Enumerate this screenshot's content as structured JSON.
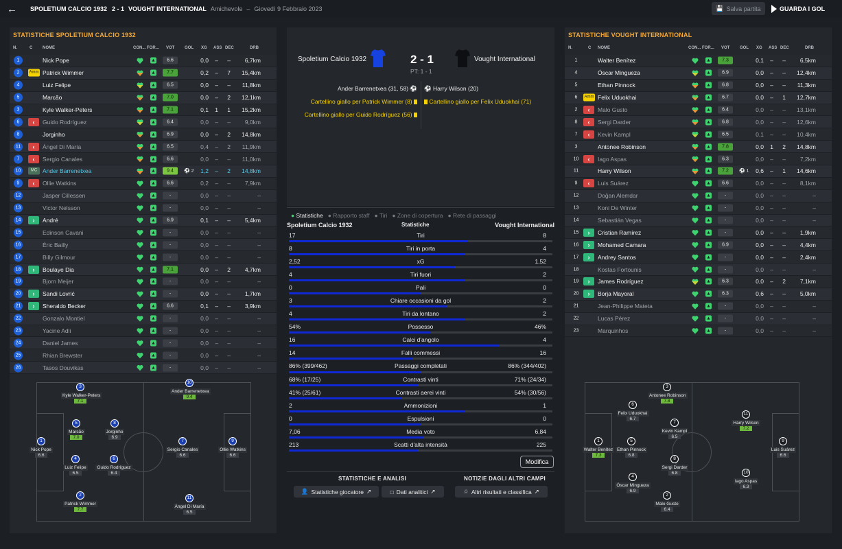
{
  "header": {
    "home": "SPOLETIUM CALCIO 1932",
    "score": "2 - 1",
    "away": "VOUGHT INTERNATIONAL",
    "type": "Amichevole",
    "sep": "–",
    "date": "Giovedì 9 Febbraio 2023",
    "save": "Salva partita",
    "goals": "GUARDA I GOL"
  },
  "cols": {
    "n": "N.",
    "c": "C",
    "name": "NOME",
    "con": "CON...",
    "form": "FOR...",
    "vot": "VOT",
    "gol": "GOL",
    "xg": "XG",
    "ass": "ASS",
    "dec": "DEC",
    "drb": "DRB"
  },
  "home": {
    "title": "STATISTICHE SPOLETIUM CALCIO 1932",
    "players": [
      {
        "n": "1",
        "name": "Nick Pope",
        "cond": "g",
        "vot": "6.6",
        "vs": "",
        "gol": "",
        "xg": "0,0",
        "ass": "–",
        "dec": "–",
        "drb": "6,7km",
        "st": "p"
      },
      {
        "n": "2",
        "pos": "Amm",
        "name": "Patrick Wimmer",
        "cond": "o",
        "vot": "7.7",
        "vs": "g",
        "gol": "",
        "xg": "0,2",
        "ass": "–",
        "dec": "7",
        "drb": "15,4km",
        "st": "p"
      },
      {
        "n": "4",
        "name": "Luiz Felipe",
        "cond": "y",
        "vot": "6.5",
        "vs": "",
        "gol": "",
        "xg": "0,0",
        "ass": "–",
        "dec": "–",
        "drb": "11,8km",
        "st": "p"
      },
      {
        "n": "5",
        "name": "Marcão",
        "cond": "o",
        "vot": "7.0",
        "vs": "g",
        "gol": "",
        "xg": "0,0",
        "ass": "–",
        "dec": "2",
        "drb": "12,1km",
        "st": "p"
      },
      {
        "n": "3",
        "name": "Kyle Walker-Peters",
        "cond": "o",
        "vot": "7.1",
        "vs": "g",
        "gol": "",
        "xg": "0,1",
        "ass": "1",
        "dec": "1",
        "drb": "15,2km",
        "st": "p"
      },
      {
        "n": "6",
        "sub": "out",
        "name": "Guido Rodríguez",
        "cond": "y",
        "vot": "6.4",
        "vs": "",
        "gol": "",
        "xg": "0,0",
        "ass": "–",
        "dec": "–",
        "drb": "9,0km",
        "st": "d"
      },
      {
        "n": "8",
        "name": "Jorginho",
        "cond": "o",
        "vot": "6.9",
        "vs": "",
        "gol": "",
        "xg": "0,0",
        "ass": "–",
        "dec": "2",
        "drb": "14,8km",
        "st": "p"
      },
      {
        "n": "11",
        "sub": "out",
        "name": "Ángel Di María",
        "cond": "o",
        "vot": "6.5",
        "vs": "",
        "gol": "",
        "xg": "0,4",
        "ass": "–",
        "dec": "2",
        "drb": "11,9km",
        "st": "d"
      },
      {
        "n": "7",
        "sub": "out",
        "name": "Sergio Canales",
        "cond": "o",
        "vot": "6.6",
        "vs": "",
        "gol": "",
        "xg": "0,0",
        "ass": "–",
        "dec": "–",
        "drb": "11,0km",
        "st": "d"
      },
      {
        "n": "10",
        "pos": "MC",
        "name": "Ander Barrenetxea",
        "cond": "o",
        "vot": "9.4",
        "vs": "gg",
        "gol": "2",
        "xg": "1,2",
        "ass": "–",
        "dec": "2",
        "drb": "14,8km",
        "st": "h"
      },
      {
        "n": "9",
        "sub": "out",
        "name": "Ollie Watkins",
        "cond": "g",
        "vot": "6.6",
        "vs": "",
        "gol": "",
        "xg": "0,2",
        "ass": "–",
        "dec": "–",
        "drb": "7,9km",
        "st": "d"
      },
      {
        "n": "12",
        "name": "Jasper Cillessen",
        "cond": "g",
        "vot": "-",
        "vs": "",
        "gol": "",
        "xg": "0,0",
        "ass": "–",
        "dec": "–",
        "drb": "–",
        "st": "d"
      },
      {
        "n": "13",
        "name": "Victor Nelsson",
        "cond": "g",
        "vot": "-",
        "vs": "",
        "gol": "",
        "xg": "0,0",
        "ass": "–",
        "dec": "–",
        "drb": "–",
        "st": "d"
      },
      {
        "n": "14",
        "sub": "in",
        "name": "André",
        "cond": "g",
        "vot": "6.9",
        "vs": "",
        "gol": "",
        "xg": "0,1",
        "ass": "–",
        "dec": "–",
        "drb": "5,4km",
        "st": "p"
      },
      {
        "n": "15",
        "name": "Edinson Cavani",
        "cond": "g",
        "vot": "-",
        "vs": "",
        "gol": "",
        "xg": "0,0",
        "ass": "–",
        "dec": "–",
        "drb": "–",
        "st": "d"
      },
      {
        "n": "16",
        "name": "Éric Bailly",
        "cond": "g",
        "vot": "-",
        "vs": "",
        "gol": "",
        "xg": "0,0",
        "ass": "–",
        "dec": "–",
        "drb": "–",
        "st": "d"
      },
      {
        "n": "17",
        "name": "Billy Gilmour",
        "cond": "g",
        "vot": "-",
        "vs": "",
        "gol": "",
        "xg": "0,0",
        "ass": "–",
        "dec": "–",
        "drb": "–",
        "st": "d"
      },
      {
        "n": "18",
        "sub": "in",
        "name": "Boulaye Dia",
        "cond": "g",
        "vot": "7.1",
        "vs": "g",
        "gol": "",
        "xg": "0,0",
        "ass": "–",
        "dec": "2",
        "drb": "4,7km",
        "st": "p"
      },
      {
        "n": "19",
        "name": "Bjorn Meijer",
        "cond": "g",
        "vot": "-",
        "vs": "",
        "gol": "",
        "xg": "0,0",
        "ass": "–",
        "dec": "–",
        "drb": "–",
        "st": "d"
      },
      {
        "n": "20",
        "sub": "in",
        "name": "Sandi Lovrić",
        "cond": "g",
        "vot": "-",
        "vs": "",
        "gol": "",
        "xg": "0,0",
        "ass": "–",
        "dec": "–",
        "drb": "1,7km",
        "st": "p"
      },
      {
        "n": "21",
        "sub": "in",
        "name": "Sheraldo Becker",
        "cond": "g",
        "vot": "6.6",
        "vs": "",
        "gol": "",
        "xg": "0,1",
        "ass": "–",
        "dec": "–",
        "drb": "3,9km",
        "st": "p"
      },
      {
        "n": "22",
        "name": "Gonzalo Montiel",
        "cond": "g",
        "vot": "-",
        "vs": "",
        "gol": "",
        "xg": "0,0",
        "ass": "–",
        "dec": "–",
        "drb": "–",
        "st": "d"
      },
      {
        "n": "23",
        "name": "Yacine Adli",
        "cond": "g",
        "vot": "-",
        "vs": "",
        "gol": "",
        "xg": "0,0",
        "ass": "–",
        "dec": "–",
        "drb": "–",
        "st": "d"
      },
      {
        "n": "24",
        "name": "Daniel James",
        "cond": "g",
        "vot": "-",
        "vs": "",
        "gol": "",
        "xg": "0,0",
        "ass": "–",
        "dec": "–",
        "drb": "–",
        "st": "d"
      },
      {
        "n": "25",
        "name": "Rhian Brewster",
        "cond": "g",
        "vot": "-",
        "vs": "",
        "gol": "",
        "xg": "0,0",
        "ass": "–",
        "dec": "–",
        "drb": "–",
        "st": "d"
      },
      {
        "n": "26",
        "name": "Tasos Douvikas",
        "cond": "g",
        "vot": "-",
        "vs": "",
        "gol": "",
        "xg": "0,0",
        "ass": "–",
        "dec": "–",
        "drb": "–",
        "st": "d"
      }
    ],
    "formation": [
      {
        "n": "3",
        "name": "Kyle Walker-Peters",
        "r": "7.1",
        "g": true
      },
      {
        "n": "10",
        "name": "Ander Barrenetxea",
        "r": "9.4",
        "g": true
      },
      {
        "n": "5",
        "name": "Marcão",
        "r": "7.0",
        "g": true
      },
      {
        "n": "8",
        "name": "Jorginho",
        "r": "6.9",
        "g": false
      },
      {
        "n": "1",
        "name": "Nick Pope",
        "r": "6.6",
        "g": false
      },
      {
        "n": "7",
        "name": "Sergio Canales",
        "r": "6.6",
        "g": false
      },
      {
        "n": "9",
        "name": "Ollie Watkins",
        "r": "6.6",
        "g": false
      },
      {
        "n": "4",
        "name": "Luiz Felipe",
        "r": "6.5",
        "g": false
      },
      {
        "n": "6",
        "name": "Guido Rodríguez",
        "r": "6.4",
        "g": false
      },
      {
        "n": "2",
        "name": "Patrick Wimmer",
        "r": "7.7",
        "g": true
      },
      {
        "n": "11",
        "name": "Ángel Di María",
        "r": "6.5",
        "g": false
      }
    ]
  },
  "away": {
    "title": "STATISTICHE VOUGHT INTERNATIONAL",
    "players": [
      {
        "n": "1",
        "name": "Walter Benítez",
        "cond": "g",
        "vot": "7.3",
        "vs": "g",
        "gol": "",
        "xg": "0,1",
        "ass": "–",
        "dec": "–",
        "drb": "6,5km",
        "st": "p",
        "plain": true
      },
      {
        "n": "4",
        "name": "Óscar Mingueza",
        "cond": "y",
        "vot": "6.9",
        "vs": "",
        "gol": "",
        "xg": "0,0",
        "ass": "–",
        "dec": "–",
        "drb": "12,4km",
        "st": "p",
        "plain": true
      },
      {
        "n": "5",
        "name": "Ethan Pinnock",
        "cond": "o",
        "vot": "6.8",
        "vs": "",
        "gol": "",
        "xg": "0,0",
        "ass": "–",
        "dec": "–",
        "drb": "11,3km",
        "st": "p",
        "plain": true
      },
      {
        "n": "6",
        "pos": "Amm",
        "name": "Felix Uduokhai",
        "cond": "o",
        "vot": "6.7",
        "vs": "",
        "gol": "",
        "xg": "0,0",
        "ass": "–",
        "dec": "1",
        "drb": "12,7km",
        "st": "p",
        "plain": true
      },
      {
        "n": "2",
        "sub": "out",
        "name": "Malo Gusto",
        "cond": "o",
        "vot": "6.4",
        "vs": "",
        "gol": "",
        "xg": "0,0",
        "ass": "–",
        "dec": "–",
        "drb": "13,1km",
        "st": "d",
        "plain": true
      },
      {
        "n": "8",
        "sub": "out",
        "name": "Sergi Darder",
        "cond": "o",
        "vot": "6.8",
        "vs": "",
        "gol": "",
        "xg": "0,0",
        "ass": "–",
        "dec": "–",
        "drb": "12,6km",
        "st": "d",
        "plain": true
      },
      {
        "n": "7",
        "sub": "out",
        "name": "Kevin Kampl",
        "cond": "y",
        "vot": "6.5",
        "vs": "",
        "gol": "",
        "xg": "0,1",
        "ass": "–",
        "dec": "–",
        "drb": "10,4km",
        "st": "d",
        "plain": true
      },
      {
        "n": "3",
        "name": "Antonee Robinson",
        "cond": "o",
        "vot": "7.8",
        "vs": "g",
        "gol": "",
        "xg": "0,0",
        "ass": "1",
        "dec": "2",
        "drb": "14,8km",
        "st": "p",
        "plain": true
      },
      {
        "n": "10",
        "sub": "out",
        "name": "Iago Aspas",
        "cond": "o",
        "vot": "6.3",
        "vs": "",
        "gol": "",
        "xg": "0,0",
        "ass": "–",
        "dec": "–",
        "drb": "7,2km",
        "st": "d",
        "plain": true
      },
      {
        "n": "11",
        "name": "Harry Wilson",
        "cond": "o",
        "vot": "7.2",
        "vs": "g",
        "gol": "1",
        "xg": "0,6",
        "ass": "–",
        "dec": "1",
        "drb": "14,6km",
        "st": "p",
        "plain": true
      },
      {
        "n": "9",
        "sub": "out",
        "name": "Luis Suárez",
        "cond": "g",
        "vot": "6.6",
        "vs": "",
        "gol": "",
        "xg": "0,0",
        "ass": "–",
        "dec": "–",
        "drb": "8,1km",
        "st": "d",
        "plain": true
      },
      {
        "n": "12",
        "name": "Doğan Alemdar",
        "cond": "g",
        "vot": "-",
        "vs": "",
        "gol": "",
        "xg": "0,0",
        "ass": "–",
        "dec": "–",
        "drb": "–",
        "st": "d",
        "plain": true
      },
      {
        "n": "13",
        "name": "Koni De Winter",
        "cond": "g",
        "vot": "-",
        "vs": "",
        "gol": "",
        "xg": "0,0",
        "ass": "–",
        "dec": "–",
        "drb": "–",
        "st": "d",
        "plain": true
      },
      {
        "n": "14",
        "name": "Sebastián Vegas",
        "cond": "g",
        "vot": "-",
        "vs": "",
        "gol": "",
        "xg": "0,0",
        "ass": "–",
        "dec": "–",
        "drb": "–",
        "st": "d",
        "plain": true
      },
      {
        "n": "15",
        "sub": "in",
        "name": "Cristian Ramírez",
        "cond": "g",
        "vot": "-",
        "vs": "",
        "gol": "",
        "xg": "0,0",
        "ass": "–",
        "dec": "–",
        "drb": "1,9km",
        "st": "p",
        "plain": true
      },
      {
        "n": "16",
        "sub": "in",
        "name": "Mohamed Camara",
        "cond": "g",
        "vot": "6.9",
        "vs": "",
        "gol": "",
        "xg": "0,0",
        "ass": "–",
        "dec": "–",
        "drb": "4,4km",
        "st": "p",
        "plain": true
      },
      {
        "n": "17",
        "sub": "in",
        "name": "Andrey Santos",
        "cond": "g",
        "vot": "-",
        "vs": "",
        "gol": "",
        "xg": "0,0",
        "ass": "–",
        "dec": "–",
        "drb": "2,4km",
        "st": "p",
        "plain": true
      },
      {
        "n": "18",
        "name": "Kostas Fortounis",
        "cond": "g",
        "vot": "-",
        "vs": "",
        "gol": "",
        "xg": "0,0",
        "ass": "–",
        "dec": "–",
        "drb": "–",
        "st": "d",
        "plain": true
      },
      {
        "n": "19",
        "sub": "in",
        "name": "James Rodríguez",
        "cond": "y",
        "vot": "6.3",
        "vs": "",
        "gol": "",
        "xg": "0,0",
        "ass": "–",
        "dec": "2",
        "drb": "7,1km",
        "st": "p",
        "plain": true
      },
      {
        "n": "20",
        "sub": "in",
        "name": "Borja Mayoral",
        "cond": "g",
        "vot": "6.3",
        "vs": "",
        "gol": "",
        "xg": "0,6",
        "ass": "–",
        "dec": "–",
        "drb": "5,0km",
        "st": "p",
        "plain": true
      },
      {
        "n": "21",
        "name": "Jean-Philippe Mateta",
        "cond": "g",
        "vot": "-",
        "vs": "",
        "gol": "",
        "xg": "0,0",
        "ass": "–",
        "dec": "–",
        "drb": "–",
        "st": "d",
        "plain": true
      },
      {
        "n": "22",
        "name": "Lucas Pérez",
        "cond": "g",
        "vot": "-",
        "vs": "",
        "gol": "",
        "xg": "0,0",
        "ass": "–",
        "dec": "–",
        "drb": "–",
        "st": "d",
        "plain": true
      },
      {
        "n": "23",
        "name": "Marquinhos",
        "cond": "g",
        "vot": "-",
        "vs": "",
        "gol": "",
        "xg": "0,0",
        "ass": "–",
        "dec": "–",
        "drb": "–",
        "st": "d",
        "plain": true
      }
    ],
    "formation": [
      {
        "n": "3",
        "name": "Antonee Robinson",
        "r": "7.8",
        "g": true
      },
      {
        "n": "6",
        "name": "Felix Uduokhai",
        "r": "6.7",
        "g": false
      },
      {
        "n": "11",
        "name": "Harry Wilson",
        "r": "7.2",
        "g": true
      },
      {
        "n": "7",
        "name": "Kevin Kampl",
        "r": "6.5",
        "g": false
      },
      {
        "n": "1",
        "name": "Walter Benítez",
        "r": "7.3",
        "g": true
      },
      {
        "n": "5",
        "name": "Ethan Pinnock",
        "r": "6.8",
        "g": false
      },
      {
        "n": "9",
        "name": "Luis Suárez",
        "r": "6.6",
        "g": false
      },
      {
        "n": "8",
        "name": "Sergi Darder",
        "r": "6.8",
        "g": false
      },
      {
        "n": "10",
        "name": "Iago Aspas",
        "r": "6.3",
        "g": false
      },
      {
        "n": "4",
        "name": "Óscar Mingueza",
        "r": "6.9",
        "g": false
      },
      {
        "n": "2",
        "name": "Malo Gusto",
        "r": "6.4",
        "g": false
      }
    ]
  },
  "match": {
    "home": "Spoletium Calcio 1932",
    "away": "Vought International",
    "score": "2 - 1",
    "ht": "PT: 1 - 1",
    "home_events": [
      "Ander Barrenetxea (31, 58)",
      "Cartellino giallo per Patrick Wimmer (8)",
      "Cartellino giallo per Guido Rodríguez (56)"
    ],
    "away_events": [
      "Harry Wilson (20)",
      "Cartellino giallo per Felix Uduokhai (71)"
    ]
  },
  "tabs": [
    "Statistiche",
    "Rapporto staff",
    "Tiri",
    "Zone di copertura",
    "Rete di passaggi"
  ],
  "stats": {
    "home": "Spoletium Calcio 1932",
    "mid": "Statistiche",
    "away": "Vought International",
    "rows": [
      {
        "l": "17",
        "label": "Tiri",
        "r": "8",
        "p": 0.68
      },
      {
        "l": "8",
        "label": "Tiri in porta",
        "r": "4",
        "p": 0.67
      },
      {
        "l": "2,52",
        "label": "xG",
        "r": "1,52",
        "p": 0.63
      },
      {
        "l": "4",
        "label": "Tiri fuori",
        "r": "2",
        "p": 0.67
      },
      {
        "l": "0",
        "label": "Pali",
        "r": "0",
        "p": 0.5
      },
      {
        "l": "3",
        "label": "Chiare occasioni da gol",
        "r": "2",
        "p": 0.6
      },
      {
        "l": "4",
        "label": "Tiri da lontano",
        "r": "2",
        "p": 0.67
      },
      {
        "l": "54%",
        "label": "Possesso",
        "r": "46%",
        "p": 0.54
      },
      {
        "l": "16",
        "label": "Calci d'angolo",
        "r": "4",
        "p": 0.8
      },
      {
        "l": "14",
        "label": "Falli commessi",
        "r": "16",
        "p": 0.47
      },
      {
        "l": "86% (399/462)",
        "label": "Passaggi completati",
        "r": "86% (344/402)",
        "p": 0.5
      },
      {
        "l": "68% (17/25)",
        "label": "Contrasti vinti",
        "r": "71% (24/34)",
        "p": 0.49
      },
      {
        "l": "41% (25/61)",
        "label": "Contrasti aerei vinti",
        "r": "54% (30/56)",
        "p": 0.43
      },
      {
        "l": "2",
        "label": "Ammonizioni",
        "r": "1",
        "p": 0.67
      },
      {
        "l": "0",
        "label": "Espulsioni",
        "r": "0",
        "p": 0.5
      },
      {
        "l": "7,06",
        "label": "Media voto",
        "r": "6,84",
        "p": 0.51
      },
      {
        "l": "213",
        "label": "Scatti d'alta intensità",
        "r": "225",
        "p": 0.49
      }
    ]
  },
  "bottom": {
    "modify": "Modifica",
    "sec1": "STATISTICHE E ANALISI",
    "sec2": "NOTIZIE DAGLI ALTRI CAMPI",
    "btn1": "Statistiche giocatore",
    "btn2": "Dati analitici",
    "btn3": "Altri risultati e classifica"
  },
  "colors": {
    "accent": "#f4a836",
    "blue": "#1f5fd6",
    "bar": "#0f28d8"
  }
}
